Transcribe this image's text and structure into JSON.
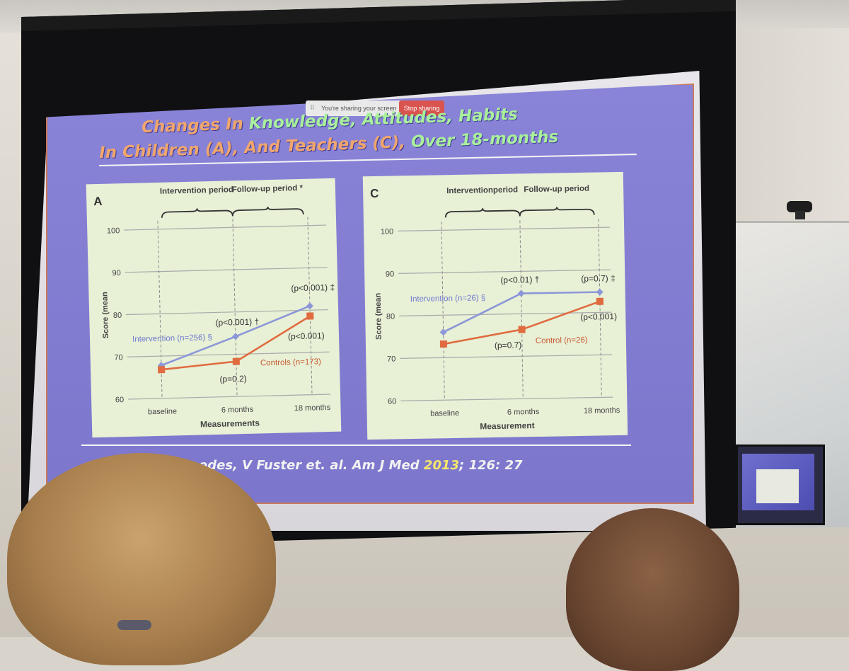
{
  "share_bar": {
    "text": "You're sharing your screen",
    "stop_label": "Stop sharing"
  },
  "slide": {
    "title_line1": {
      "part1": "Changes In ",
      "part2": "Knowledge, ",
      "part3": "Attitudes, Habits"
    },
    "title_line2": {
      "part1": "In Children (A), And Teachers (C), ",
      "part2": "Over 18-months"
    },
    "citation": {
      "authors": "Céspedes, V Fuster et. al.  Am J Med ",
      "year": "2013",
      "rest": "; 126: 27"
    },
    "colors": {
      "intervention": "#8c97d8",
      "control": "#e06b3f",
      "panel_bg": "#e8f0d6"
    }
  },
  "chart_data": [
    {
      "type": "line",
      "panel_label": "A",
      "ylabel": "Score (mean",
      "xlabel": "Measurements",
      "categories": [
        "baseline",
        "6 months",
        "18 months"
      ],
      "ylim": [
        60,
        100
      ],
      "yticks": [
        "60",
        "70",
        "80",
        "90",
        "100"
      ],
      "period_labels": [
        "Intervention period",
        "Follow-up period *"
      ],
      "series": [
        {
          "name": "Intervention (n=256) §",
          "values": [
            67.8,
            74.2,
            81
          ]
        },
        {
          "name": "Controls (n=173)",
          "values": [
            66.8,
            68.3,
            78.6
          ]
        }
      ],
      "annotations": [
        "(p<0.001) †",
        "(p<0.001) ‡",
        "(p=0.2)",
        "(p<0.001)"
      ]
    },
    {
      "type": "line",
      "panel_label": "C",
      "ylabel": "Score (mean",
      "xlabel": "Measurement",
      "categories": [
        "baseline",
        "6 months",
        "18 months"
      ],
      "ylim": [
        60,
        100
      ],
      "yticks": [
        "60",
        "70",
        "80",
        "90",
        "100"
      ],
      "period_labels": [
        "Interventionperiod",
        "Follow-up period"
      ],
      "series": [
        {
          "name": "Intervention (n=26) §",
          "values": [
            76,
            84.8,
            84.8
          ]
        },
        {
          "name": "Control (n=26)",
          "values": [
            73.2,
            76.3,
            82.6
          ]
        }
      ],
      "annotations": [
        "(p<0.01) †",
        "(p=0.7) ‡",
        "(p=0.7)",
        "(p<0.001)"
      ]
    }
  ]
}
